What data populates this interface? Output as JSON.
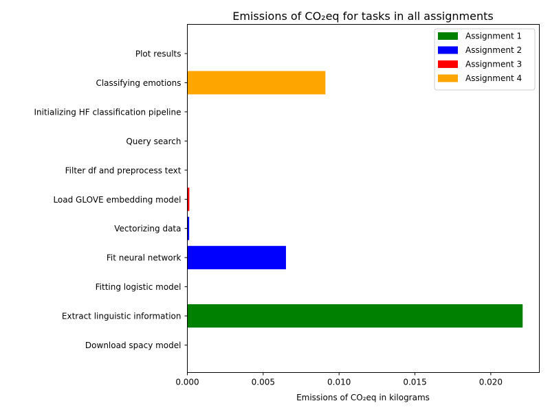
{
  "chart_data": {
    "type": "bar",
    "orientation": "horizontal",
    "title": "Emissions of CO₂eq for tasks in all assignments",
    "xlabel": "Emissions of CO₂eq in kilograms",
    "ylabel": "",
    "xlim": [
      0,
      0.0232
    ],
    "xticks": [
      "0.000",
      "0.005",
      "0.010",
      "0.015",
      "0.020"
    ],
    "grid": false,
    "legend_position": "top-right",
    "categories": [
      "Download spacy model",
      "Extract linguistic information",
      "Fitting logistic model",
      "Fit neural network",
      "Vectorizing data",
      "Load GLOVE embedding model",
      "Filter df and preprocess text",
      "Query search",
      "Initializing HF classification pipeline",
      "Classifying emotions",
      "Plot results"
    ],
    "values": [
      0.0,
      0.0221,
      0.0,
      0.0065,
      0.00012,
      0.00013,
      0.0,
      0.0,
      0.0,
      0.0091,
      0.0
    ],
    "bar_series": [
      0,
      0,
      1,
      1,
      1,
      2,
      3,
      3,
      3,
      3,
      3
    ],
    "series": [
      {
        "name": "Assignment 1",
        "color": "#008000"
      },
      {
        "name": "Assignment 2",
        "color": "#0000ff"
      },
      {
        "name": "Assignment 3",
        "color": "#ff0000"
      },
      {
        "name": "Assignment 4",
        "color": "#ffa500"
      }
    ]
  }
}
